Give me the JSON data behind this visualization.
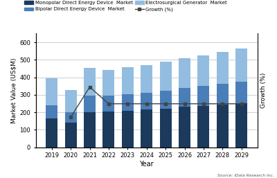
{
  "years": [
    2019,
    2020,
    2021,
    2022,
    2023,
    2024,
    2025,
    2026,
    2027,
    2028,
    2029
  ],
  "monopolar": [
    165,
    140,
    200,
    205,
    210,
    215,
    222,
    230,
    237,
    244,
    252
  ],
  "bipolar": [
    75,
    62,
    95,
    90,
    93,
    96,
    101,
    107,
    113,
    118,
    124
  ],
  "electrosurgical": [
    155,
    125,
    160,
    148,
    153,
    158,
    165,
    172,
    176,
    181,
    187
  ],
  "growth_vals": [
    -15,
    30,
    5,
    5,
    5,
    5,
    5,
    5,
    5,
    5
  ],
  "growth_x_idx": [
    1,
    2,
    3,
    4,
    5,
    6,
    7,
    8,
    9,
    10
  ],
  "bar_bottom_color": "#1b3a5c",
  "bar_mid_color": "#4a7eb8",
  "bar_top_color": "#92bde0",
  "growth_line_color": "#444444",
  "ylabel_left": "Market Value (US$M)",
  "ylabel_right": "Growth (%)",
  "xlabel": "Year",
  "legend_labels": [
    "Monopolar Direct Energy Device  Market",
    "Bipolar Direct Energy Device  Market",
    "Electrosurgical Generator  Market",
    "Growth (%)"
  ],
  "source_text": "Source: iData Research Inc.",
  "background_color": "#ffffff",
  "grid_color": "#bbbbbb",
  "ylim_left": [
    0,
    650
  ],
  "growth_ylim": [
    -60,
    110
  ]
}
